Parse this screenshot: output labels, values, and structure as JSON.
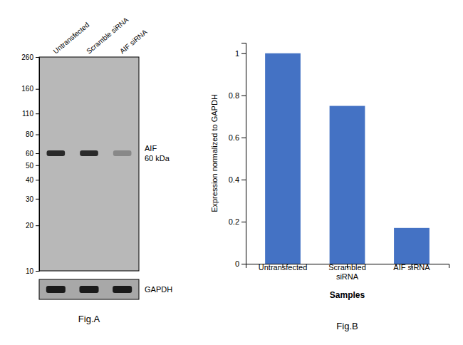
{
  "chart_data": [
    {
      "type": "blot",
      "title": "Fig.A",
      "categories": [
        "Untransfected",
        "Scramble siRNA",
        "AIF siRNA"
      ],
      "log": "y",
      "ylim": [
        10,
        260
      ],
      "yticks": [
        260,
        160,
        110,
        80,
        60,
        50,
        40,
        30,
        20,
        10
      ],
      "series": [
        {
          "name": "AIF",
          "values": [
            60,
            60,
            60
          ],
          "colors": [
            "#2a2a2a",
            "#2a2a2a",
            "#888888"
          ]
        },
        {
          "name": "GAPDH",
          "colors": [
            "#1a1a1a",
            "#1a1a1a",
            "#1a1a1a"
          ]
        }
      ],
      "annotations": [
        "60 kDa"
      ]
    },
    {
      "type": "bar",
      "title": "Fig.B",
      "categories": [
        "Untransfected",
        "Scrambled\nsiRNA",
        "AIF siRNA"
      ],
      "values": [
        1.0,
        0.75,
        0.17
      ],
      "color": "#4472C4",
      "xlabel": "Samples",
      "ylabel": "Expression normalized to GAPDH",
      "ylim": [
        0,
        1.05
      ],
      "yticks": [
        0,
        0.2,
        0.4,
        0.6,
        0.8,
        1
      ]
    }
  ]
}
